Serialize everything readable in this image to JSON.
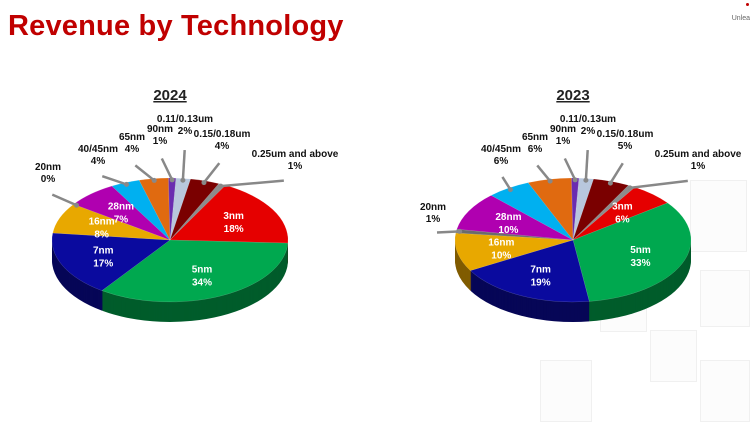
{
  "page": {
    "title": "Revenue by Technology",
    "logo_text": "Unlea"
  },
  "chart_data": [
    {
      "type": "pie",
      "title": "2024",
      "start": "top, clockwise",
      "slices": [
        {
          "label": "0.11/0.13um",
          "value": 2,
          "pct": "2%",
          "color": "#b8c7dd",
          "label_position": "outside"
        },
        {
          "label": "0.15/0.18um",
          "value": 4,
          "pct": "4%",
          "color": "#7a0000",
          "label_position": "outside"
        },
        {
          "label": "0.25um and above",
          "value": 1,
          "pct": "1%",
          "color": "#8c8c8c",
          "label_position": "outside"
        },
        {
          "label": "3nm",
          "value": 18,
          "pct": "18%",
          "color": "#e50000",
          "label_position": "inside"
        },
        {
          "label": "5nm",
          "value": 34,
          "pct": "34%",
          "color": "#00a84f",
          "label_position": "inside"
        },
        {
          "label": "7nm",
          "value": 17,
          "pct": "17%",
          "color": "#0a0a9e",
          "label_position": "inside"
        },
        {
          "label": "16nm",
          "value": 8,
          "pct": "8%",
          "color": "#e8a800",
          "label_position": "inside"
        },
        {
          "label": "20nm",
          "value": 0,
          "pct": "0%",
          "color": "#6b6b6b",
          "label_position": "outside"
        },
        {
          "label": "28nm",
          "value": 7,
          "pct": "7%",
          "color": "#b000b0",
          "label_position": "inside"
        },
        {
          "label": "40/45nm",
          "value": 4,
          "pct": "4%",
          "color": "#00b0f0",
          "label_position": "outside"
        },
        {
          "label": "65nm",
          "value": 4,
          "pct": "4%",
          "color": "#e06a10",
          "label_position": "outside"
        },
        {
          "label": "90nm",
          "value": 1,
          "pct": "1%",
          "color": "#6a2cb0",
          "label_position": "outside"
        }
      ]
    },
    {
      "type": "pie",
      "title": "2023",
      "start": "top, clockwise",
      "slices": [
        {
          "label": "0.11/0.13um",
          "value": 2,
          "pct": "2%",
          "color": "#b8c7dd",
          "label_position": "outside"
        },
        {
          "label": "0.15/0.18um",
          "value": 5,
          "pct": "5%",
          "color": "#7a0000",
          "label_position": "outside"
        },
        {
          "label": "0.25um and above",
          "value": 1,
          "pct": "1%",
          "color": "#8c8c8c",
          "label_position": "outside"
        },
        {
          "label": "3nm",
          "value": 6,
          "pct": "6%",
          "color": "#e50000",
          "label_position": "inside"
        },
        {
          "label": "5nm",
          "value": 33,
          "pct": "33%",
          "color": "#00a84f",
          "label_position": "inside"
        },
        {
          "label": "7nm",
          "value": 19,
          "pct": "19%",
          "color": "#0a0a9e",
          "label_position": "inside"
        },
        {
          "label": "16nm",
          "value": 10,
          "pct": "10%",
          "color": "#e8a800",
          "label_position": "inside"
        },
        {
          "label": "20nm",
          "value": 1,
          "pct": "1%",
          "color": "#6b6b6b",
          "label_position": "outside"
        },
        {
          "label": "28nm",
          "value": 10,
          "pct": "10%",
          "color": "#b000b0",
          "label_position": "inside"
        },
        {
          "label": "40/45nm",
          "value": 6,
          "pct": "6%",
          "color": "#00b0f0",
          "label_position": "outside"
        },
        {
          "label": "65nm",
          "value": 6,
          "pct": "6%",
          "color": "#e06a10",
          "label_position": "outside"
        },
        {
          "label": "90nm",
          "value": 1,
          "pct": "1%",
          "color": "#6a2cb0",
          "label_position": "outside"
        }
      ]
    }
  ]
}
